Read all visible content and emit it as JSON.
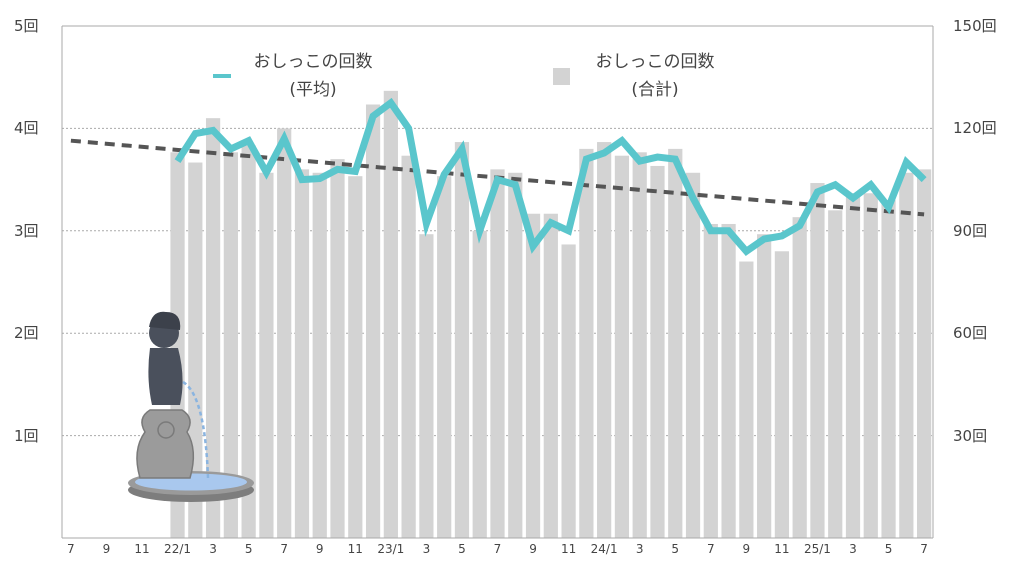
{
  "chart_data": {
    "type": "bar",
    "title": "",
    "legend": [
      {
        "label_line1": "おしっこの回数",
        "label_line2": "(平均)",
        "type": "line",
        "color": "#5ac6cc"
      },
      {
        "label_line1": "おしっこの回数",
        "label_line2": "(合計)",
        "type": "bar",
        "color": "#d3d3d3"
      }
    ],
    "legend_position": "top-inside",
    "y_left": {
      "ticks": [
        "5回",
        "4回",
        "3回",
        "2回",
        "1回"
      ],
      "range": [
        0,
        5
      ],
      "label": ""
    },
    "y_right": {
      "ticks": [
        "150回",
        "120回",
        "90回",
        "60回",
        "30回"
      ],
      "range": [
        0,
        150
      ],
      "label": ""
    },
    "grid": true,
    "x_tick_labels": [
      "7",
      "9",
      "11",
      "22/1",
      "3",
      "5",
      "7",
      "9",
      "11",
      "23/1",
      "3",
      "5",
      "7",
      "9",
      "11",
      "24/1",
      "3",
      "5",
      "7",
      "9",
      "11",
      "25/1",
      "3",
      "5",
      "7"
    ],
    "categories": [
      "21/7",
      "21/8",
      "21/9",
      "21/10",
      "21/11",
      "21/12",
      "22/1",
      "22/2",
      "22/3",
      "22/4",
      "22/5",
      "22/6",
      "22/7",
      "22/8",
      "22/9",
      "22/10",
      "22/11",
      "22/12",
      "23/1",
      "23/2",
      "23/3",
      "23/4",
      "23/5",
      "23/6",
      "23/7",
      "23/8",
      "23/9",
      "23/10",
      "23/11",
      "23/12",
      "24/1",
      "24/2",
      "24/3",
      "24/4",
      "24/5",
      "24/6",
      "24/7",
      "24/8",
      "24/9",
      "24/10",
      "24/11",
      "24/12",
      "25/1",
      "25/2",
      "25/3",
      "25/4",
      "25/5",
      "25/6",
      "25/7"
    ],
    "series": [
      {
        "name": "おしっこの回数(合計)",
        "axis": "right",
        "type": "bar",
        "values": [
          null,
          null,
          null,
          null,
          null,
          null,
          113,
          110,
          123,
          113,
          115,
          107,
          120,
          108,
          107,
          111,
          106,
          127,
          131,
          112,
          89,
          106,
          116,
          90,
          108,
          107,
          95,
          95,
          86,
          114,
          116,
          112,
          113,
          109,
          114,
          107,
          92,
          92,
          81,
          89,
          84,
          94,
          104,
          96,
          101,
          101,
          99,
          107,
          108
        ]
      },
      {
        "name": "おしっこの回数(平均)",
        "axis": "left",
        "type": "line",
        "values": [
          null,
          null,
          null,
          null,
          null,
          null,
          3.68,
          3.95,
          3.98,
          3.8,
          3.88,
          3.57,
          3.9,
          3.5,
          3.51,
          3.6,
          3.58,
          4.12,
          4.25,
          4.0,
          3.07,
          3.55,
          3.8,
          3.0,
          3.5,
          3.45,
          2.85,
          3.08,
          3.0,
          3.7,
          3.76,
          3.88,
          3.68,
          3.72,
          3.7,
          3.32,
          3.0,
          3.0,
          2.8,
          2.92,
          2.95,
          3.05,
          3.38,
          3.45,
          3.32,
          3.45,
          3.23,
          3.67,
          3.5
        ]
      },
      {
        "name": "trend",
        "axis": "left",
        "type": "line",
        "style": "dashed",
        "color": "#555555",
        "start": {
          "x": "21/7",
          "y": 3.88
        },
        "end": {
          "x": "25/7",
          "y": 3.16
        }
      }
    ]
  }
}
